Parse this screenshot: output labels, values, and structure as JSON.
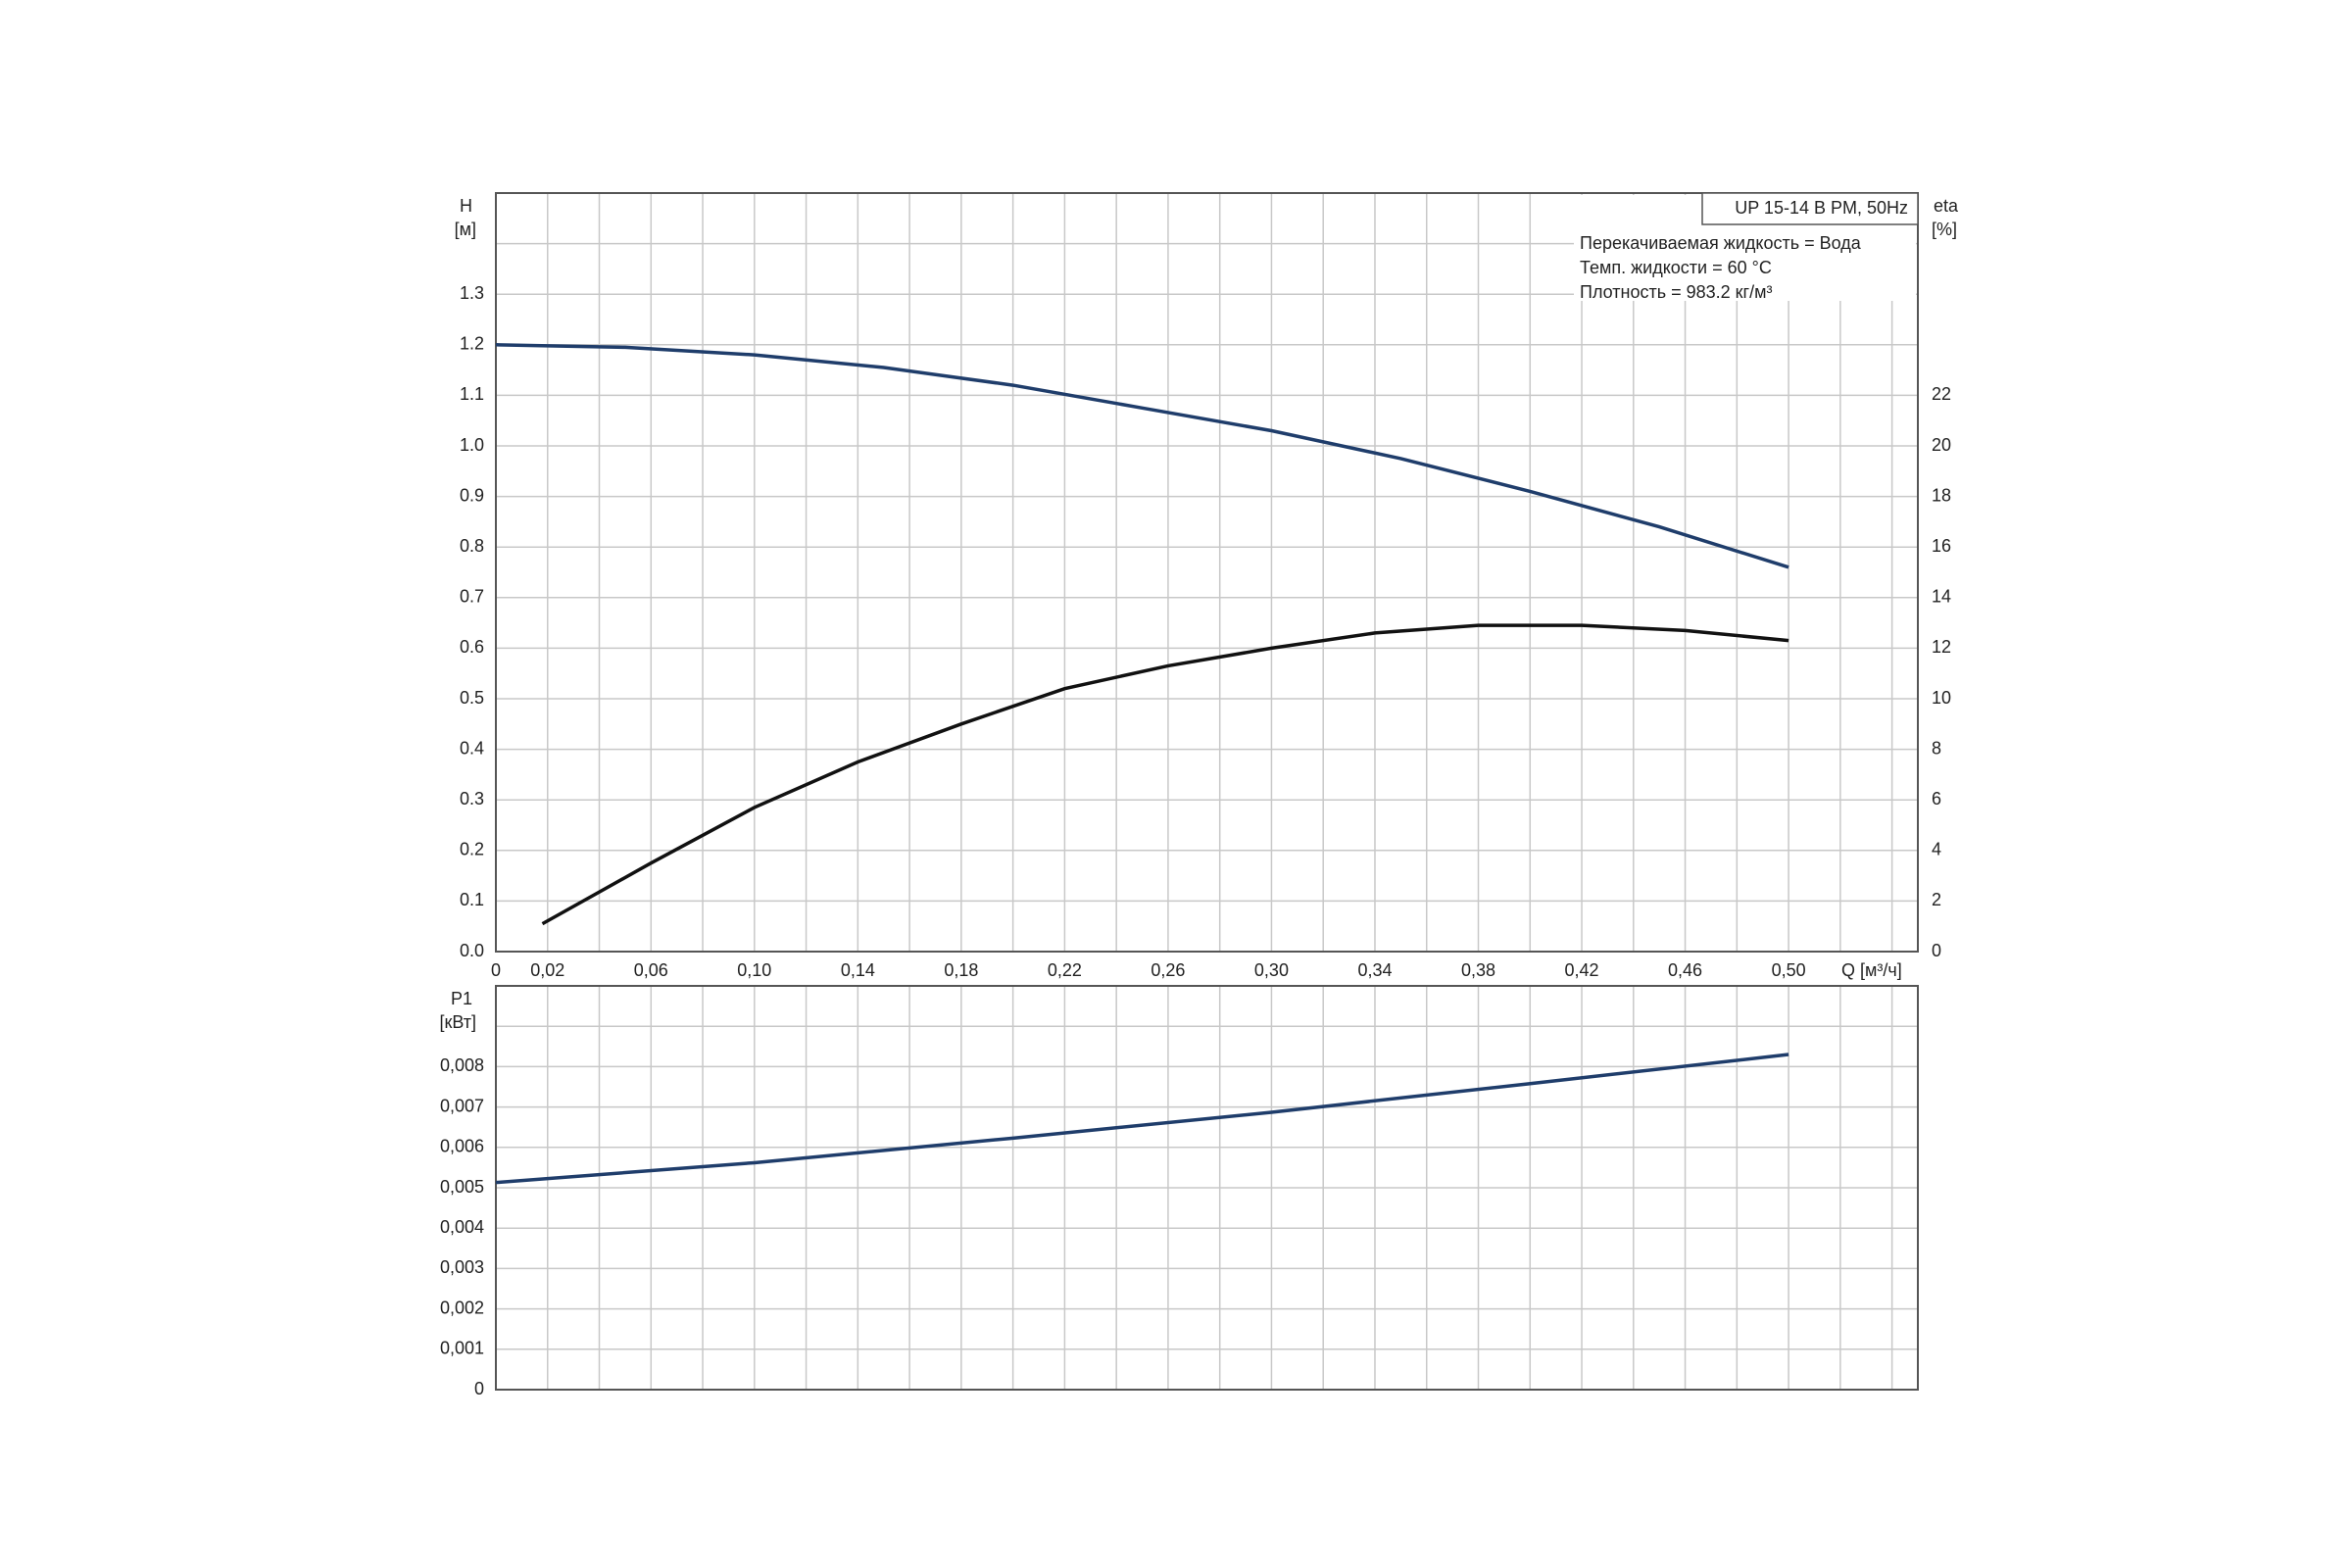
{
  "chart_data": [
    {
      "type": "line",
      "ylabel": "H",
      "yunit": "[м]",
      "y2label": "eta",
      "y2unit": "[%]",
      "xlabel": "Q [м³/ч]",
      "legend_title": "UP 15-14 B PM, 50Hz",
      "legend_lines": [
        "Перекачиваемая жидкость = Вода",
        "Темп. жидкости = 60 °C",
        "Плотность = 983.2 кг/м³"
      ],
      "xlim": [
        0,
        0.55
      ],
      "xticks": [
        0,
        {
          "value": 0.02,
          "label": "0,02"
        },
        {
          "value": 0.06,
          "label": "0,06"
        },
        {
          "value": 0.1,
          "label": "0,10"
        },
        {
          "value": 0.14,
          "label": "0,14"
        },
        {
          "value": 0.18,
          "label": "0,18"
        },
        {
          "value": 0.22,
          "label": "0,22"
        },
        {
          "value": 0.26,
          "label": "0,26"
        },
        {
          "value": 0.3,
          "label": "0,30"
        },
        {
          "value": 0.34,
          "label": "0,34"
        },
        {
          "value": 0.38,
          "label": "0,38"
        },
        {
          "value": 0.42,
          "label": "0,42"
        },
        {
          "value": 0.46,
          "label": "0,46"
        },
        {
          "value": 0.5,
          "label": "0,50"
        }
      ],
      "xgrid": [
        0.04,
        0.08,
        0.12,
        0.16,
        0.2,
        0.24,
        0.28,
        0.32,
        0.36,
        0.4,
        0.44,
        0.48,
        0.52,
        0.54
      ],
      "ylim": [
        0,
        1.5
      ],
      "yticks": [
        {
          "value": 0,
          "label": "0.0"
        },
        0.1,
        0.2,
        0.3,
        0.4,
        0.5,
        0.6,
        0.7,
        0.8,
        0.9,
        {
          "value": 1.0,
          "label": "1.0"
        },
        1.1,
        1.2,
        1.3
      ],
      "ygrid": [
        1.4
      ],
      "y2lim": [
        0,
        30
      ],
      "y2ticks": [
        0,
        2,
        4,
        6,
        8,
        10,
        12,
        14,
        16,
        18,
        20,
        22
      ],
      "grid": true,
      "series": [
        {
          "color": "#1f3d6b",
          "axis": "y",
          "x": [
            0,
            0.05,
            0.1,
            0.15,
            0.2,
            0.25,
            0.3,
            0.35,
            0.4,
            0.45,
            0.5
          ],
          "values": [
            1.2,
            1.195,
            1.18,
            1.155,
            1.12,
            1.075,
            1.03,
            0.975,
            0.91,
            0.84,
            0.76
          ]
        },
        {
          "color": "#111111",
          "axis": "y2",
          "x": [
            0.018,
            0.06,
            0.1,
            0.14,
            0.18,
            0.22,
            0.26,
            0.3,
            0.34,
            0.38,
            0.42,
            0.46,
            0.5
          ],
          "values": [
            1.1,
            3.5,
            5.7,
            7.5,
            9.0,
            10.4,
            11.3,
            12.0,
            12.6,
            12.9,
            12.9,
            12.7,
            12.3
          ]
        }
      ]
    },
    {
      "type": "line",
      "ylabel": "P1",
      "yunit": "[кВт]",
      "xlim": [
        0,
        0.55
      ],
      "xgrid": [
        0.02,
        0.04,
        0.06,
        0.08,
        0.1,
        0.12,
        0.14,
        0.16,
        0.18,
        0.2,
        0.22,
        0.24,
        0.26,
        0.28,
        0.3,
        0.32,
        0.34,
        0.36,
        0.38,
        0.4,
        0.42,
        0.44,
        0.46,
        0.48,
        0.5,
        0.52,
        0.54
      ],
      "ylim": [
        0,
        0.01
      ],
      "yticks": [
        0,
        {
          "value": 0.001,
          "label": "0,001"
        },
        {
          "value": 0.002,
          "label": "0,002"
        },
        {
          "value": 0.003,
          "label": "0,003"
        },
        {
          "value": 0.004,
          "label": "0,004"
        },
        {
          "value": 0.005,
          "label": "0,005"
        },
        {
          "value": 0.006,
          "label": "0,006"
        },
        {
          "value": 0.007,
          "label": "0,007"
        },
        {
          "value": 0.008,
          "label": "0,008"
        }
      ],
      "ygrid": [
        0.009
      ],
      "grid": true,
      "series": [
        {
          "color": "#1f3d6b",
          "axis": "y",
          "x": [
            0,
            0.1,
            0.2,
            0.3,
            0.4,
            0.5
          ],
          "values": [
            0.00513,
            0.00562,
            0.00623,
            0.00687,
            0.00758,
            0.0083
          ]
        }
      ]
    }
  ]
}
